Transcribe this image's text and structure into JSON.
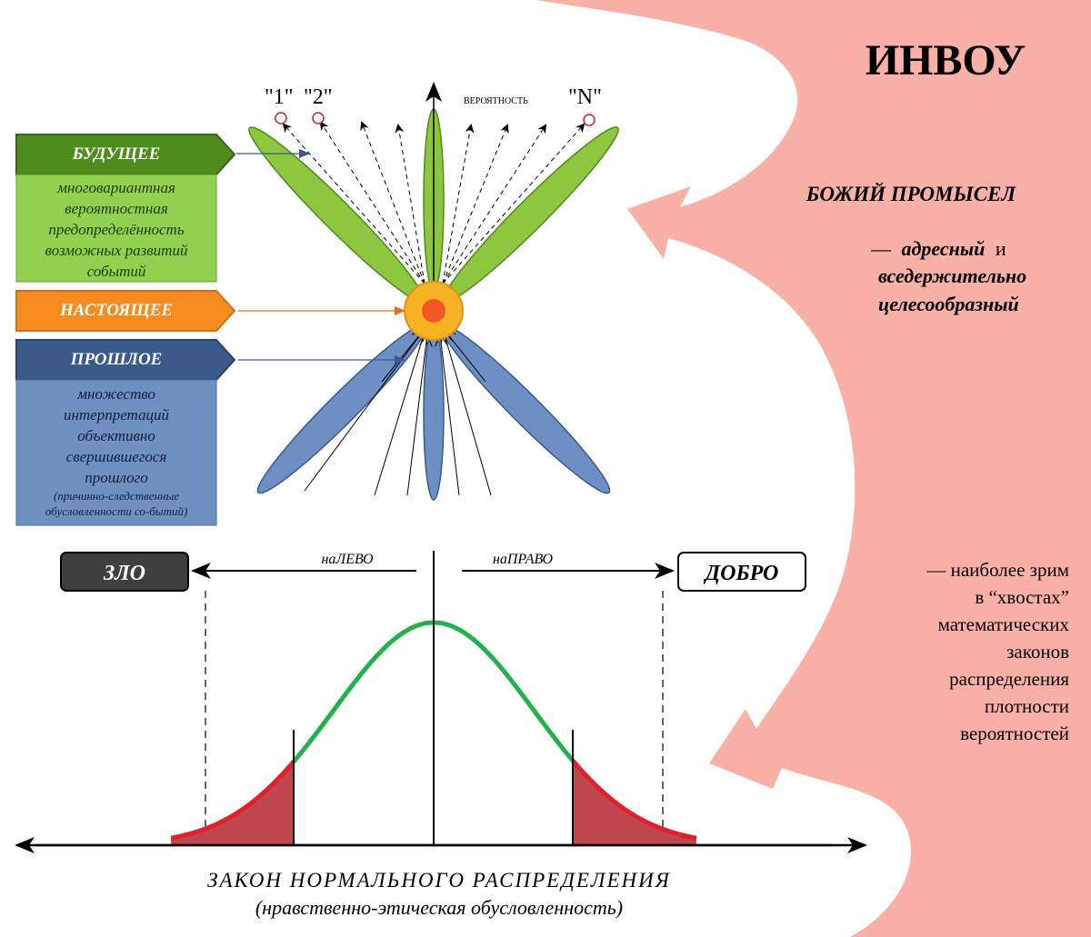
{
  "title": "ИНВОУ",
  "arrow_labels": {
    "one": "\"1\"",
    "two": "\"2\"",
    "prob_word": "вероятность",
    "n": "\"N\""
  },
  "future": {
    "title": "БУДУЩЕЕ",
    "desc": [
      "многовариантная",
      "вероятностная",
      "предопределённость",
      "возможных развитий",
      "событий"
    ],
    "color": "#4e8c1e",
    "desc_color": "#92d050"
  },
  "present": {
    "title": "НАСТОЯЩЕЕ",
    "color": "#f68b1f"
  },
  "past": {
    "title": "ПРОШЛОЕ",
    "desc": [
      "множество",
      "интерпретаций",
      "объективно",
      "свершившегося",
      "прошлого"
    ],
    "desc_small": [
      "(причинно-следственные",
      "обусловленности со-бытий)"
    ],
    "color": "#3a5a8c",
    "desc_color": "#6f91c2"
  },
  "providence": {
    "heading": "БОЖИЙ ПРОМЫСЕЛ",
    "dash": "—",
    "w1": "адресный",
    "and": "и",
    "w2": "вседержительно",
    "w3": "целесообразный"
  },
  "tails_note": [
    "— наиболее зрим",
    "в “хвостах”",
    "математических",
    "законов",
    "распределения",
    "плотности",
    "вероятностей"
  ],
  "evil": "ЗЛО",
  "good": "ДОБРО",
  "left_label": "наЛЕВО",
  "right_label": "наПРАВО",
  "chart_data": {
    "type": "line",
    "title": "ЗАКОН НОРМАЛЬНОГО РАСПРЕДЕЛЕНИЯ",
    "subtitle": "(нравственно-этическая обусловленность)",
    "curve": "normal",
    "colors": {
      "curve": "#22b14c",
      "tail": "#e0202a",
      "tail_fill": "#c0474f"
    }
  },
  "colors": {
    "bg_shape": "#f9b0a6",
    "green_petal": "#8dc63f",
    "blue_petal": "#6d8fc4",
    "center": "#f8b324",
    "center_dot": "#f05a22"
  }
}
